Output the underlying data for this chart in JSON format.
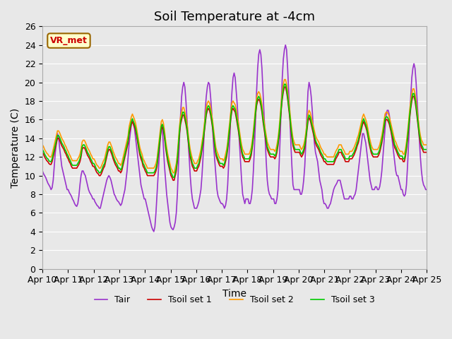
{
  "title": "Soil Temperature at -4cm",
  "xlabel": "Time",
  "ylabel": "Temperature (C)",
  "ylim": [
    0,
    26
  ],
  "xlim": [
    0,
    360
  ],
  "xtick_labels": [
    "Apr 10",
    "Apr 11",
    "Apr 12",
    "Apr 13",
    "Apr 14",
    "Apr 15",
    "Apr 16",
    "Apr 17",
    "Apr 18",
    "Apr 19",
    "Apr 20",
    "Apr 21",
    "Apr 22",
    "Apr 23",
    "Apr 24",
    "Apr 25"
  ],
  "ytick_vals": [
    0,
    2,
    4,
    6,
    8,
    10,
    12,
    14,
    16,
    18,
    20,
    22,
    24,
    26
  ],
  "colors": {
    "Tair": "#9933cc",
    "Tsoil1": "#cc0000",
    "Tsoil2": "#ff9900",
    "Tsoil3": "#00cc00"
  },
  "legend_labels": [
    "Tair",
    "Tsoil set 1",
    "Tsoil set 2",
    "Tsoil set 3"
  ],
  "background_color": "#e8e8e8",
  "plot_bg_color": "#e8e8e8",
  "label_text": "VR_met",
  "label_bg": "#ffffcc",
  "label_border": "#996600",
  "title_fontsize": 13,
  "axis_label_fontsize": 10,
  "tick_fontsize": 9,
  "linewidth": 1.2
}
